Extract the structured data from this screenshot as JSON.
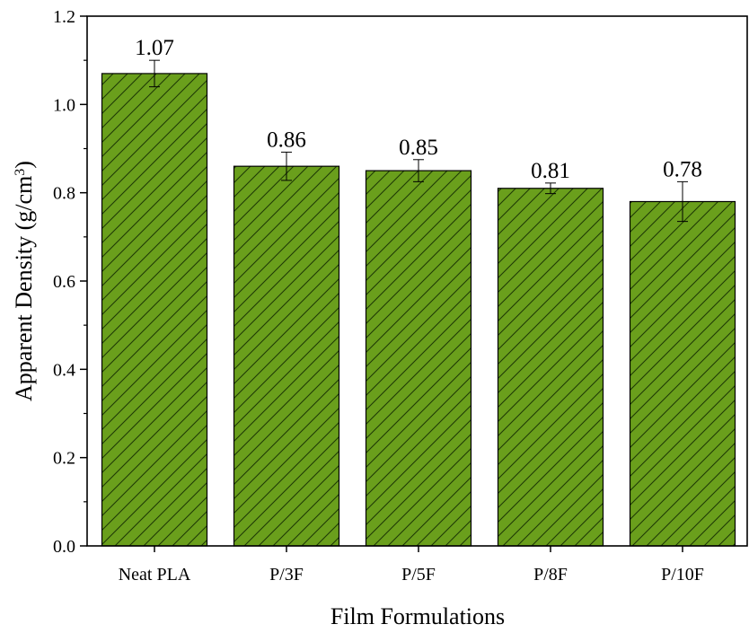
{
  "chart_data": {
    "type": "bar",
    "categories": [
      "Neat PLA",
      "P/3F",
      "P/5F",
      "P/8F",
      "P/10F"
    ],
    "values": [
      1.07,
      0.86,
      0.85,
      0.81,
      0.78
    ],
    "value_labels": [
      "1.07",
      "0.86",
      "0.85",
      "0.81",
      "0.78"
    ],
    "errors": [
      0.03,
      0.032,
      0.025,
      0.012,
      0.045
    ],
    "xlabel": "Film Formulations",
    "ylabel": {
      "text": "Apparent Density (g/cm",
      "superscript": "3",
      "suffix": ")"
    },
    "ylim": [
      0,
      1.2
    ],
    "yticks": [
      "0.0",
      "0.2",
      "0.4",
      "0.6",
      "0.8",
      "1.0",
      "1.2"
    ],
    "ytick_values": [
      0,
      0.2,
      0.4,
      0.6,
      0.8,
      1.0,
      1.2
    ],
    "bar_color": "#6a9f1c",
    "hatch_color": "#1e3a05",
    "grid": false
  }
}
